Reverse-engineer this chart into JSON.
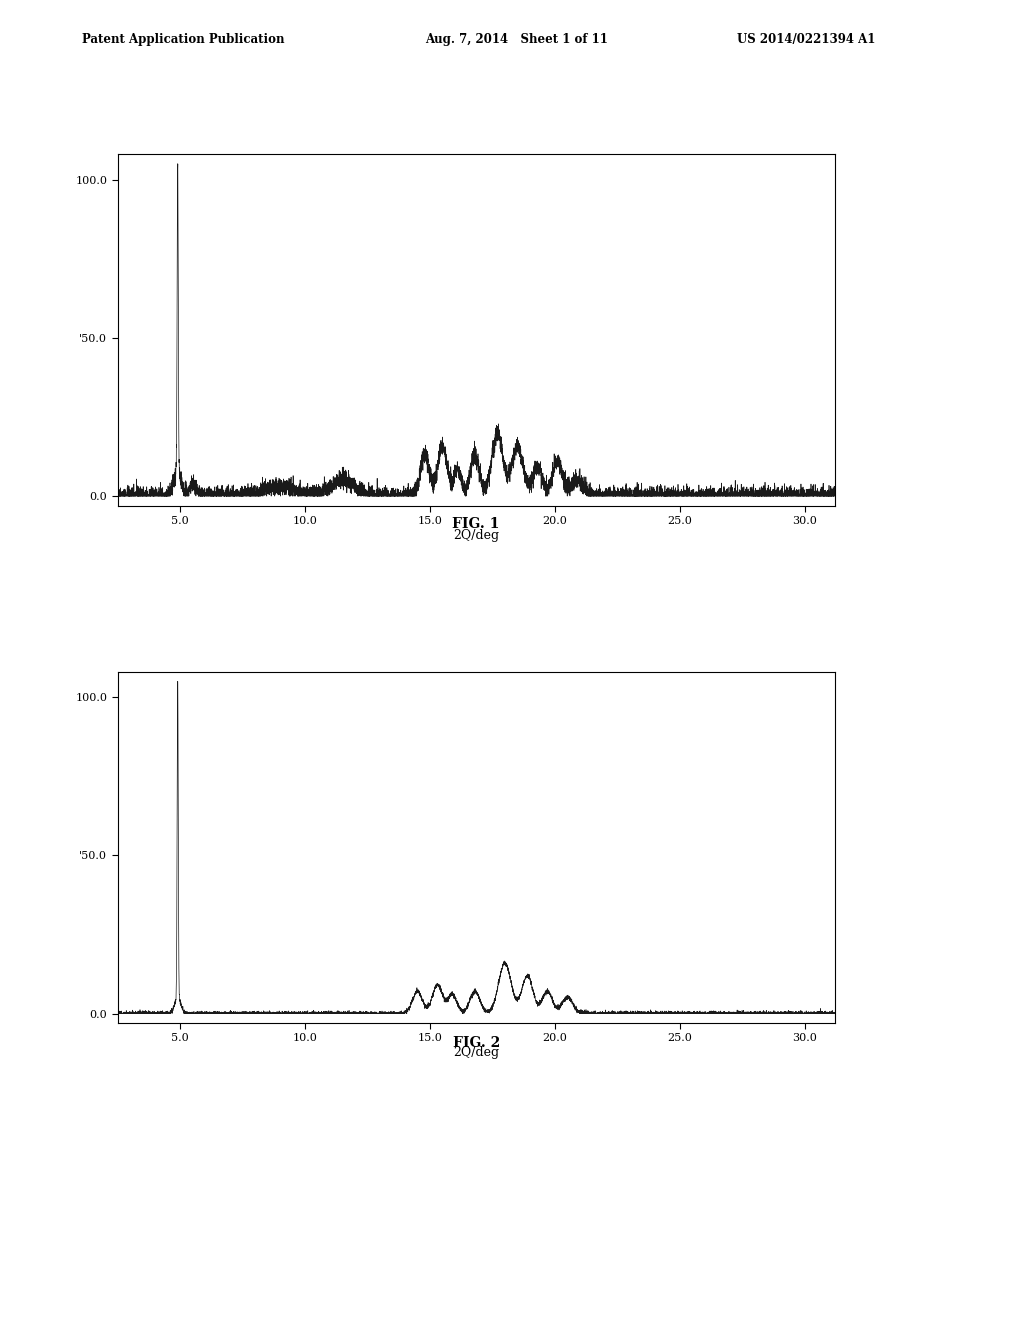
{
  "header_left": "Patent Application Publication",
  "header_center": "Aug. 7, 2014   Sheet 1 of 11",
  "header_right": "US 2014/0221394 A1",
  "fig1_label": "FIG. 1",
  "fig2_label": "FIG. 2",
  "xlabel": "2Q/deg",
  "background_color": "#ffffff",
  "line_color": "#1a1a1a",
  "xlim": [
    2.5,
    31.2
  ],
  "ylim": [
    -3,
    108
  ],
  "xticks": [
    5.0,
    10.0,
    15.0,
    20.0,
    25.0,
    30.0
  ],
  "ytick_positions": [
    0,
    50,
    100
  ],
  "ytick_labels": [
    "0.0",
    "'50.0",
    "100.0"
  ]
}
